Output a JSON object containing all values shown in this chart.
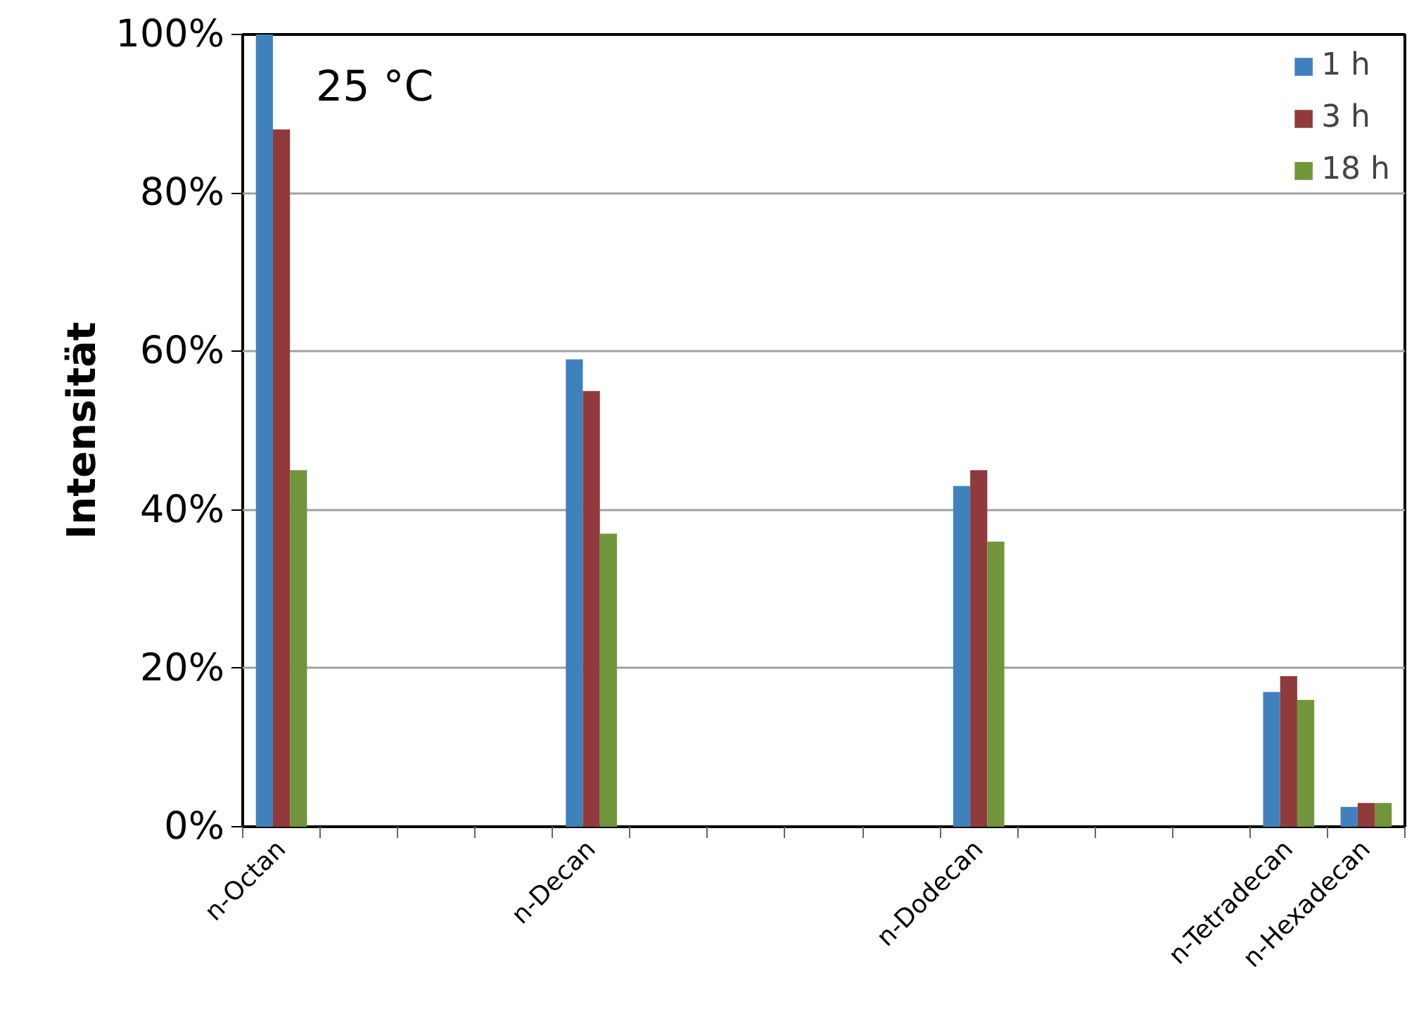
{
  "chart_data": {
    "type": "bar",
    "categories": [
      "n-Octan",
      null,
      null,
      null,
      "n-Decan",
      null,
      null,
      null,
      null,
      "n-Dodecan",
      null,
      null,
      null,
      "n-Tetradecan",
      "n-Hexadecan"
    ],
    "series": [
      {
        "name": "1 h",
        "color": "#3f81bc",
        "values": [
          100,
          null,
          null,
          null,
          59,
          null,
          null,
          null,
          null,
          43,
          null,
          null,
          null,
          17,
          2.5
        ]
      },
      {
        "name": "3 h",
        "color": "#903a3b",
        "values": [
          88,
          null,
          null,
          null,
          55,
          null,
          null,
          null,
          null,
          45,
          null,
          null,
          null,
          19,
          3
        ]
      },
      {
        "name": "18 h",
        "color": "#71953b",
        "values": [
          45,
          null,
          null,
          null,
          37,
          null,
          null,
          null,
          null,
          36,
          null,
          null,
          null,
          16,
          3
        ]
      }
    ],
    "ylabel": "Intensität",
    "annotations": [
      "25 °C"
    ],
    "ylim": [
      0,
      100
    ],
    "yticks": [
      {
        "value": 0,
        "label": "0%"
      },
      {
        "value": 20,
        "label": "20%"
      },
      {
        "value": 40,
        "label": "40%"
      },
      {
        "value": 60,
        "label": "60%"
      },
      {
        "value": 80,
        "label": "80%"
      },
      {
        "value": 100,
        "label": "100%"
      }
    ],
    "grid": "y",
    "legend": "top right"
  }
}
